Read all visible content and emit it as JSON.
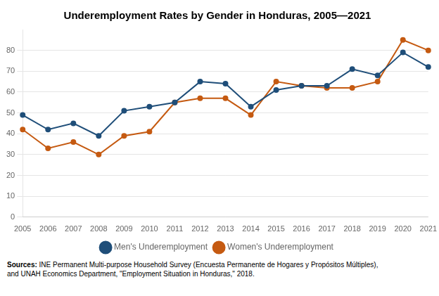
{
  "chart_data": {
    "type": "line",
    "title": "Underemployment Rates by Gender in Honduras, 2005—2021",
    "categories": [
      "2005",
      "2006",
      "2007",
      "2008",
      "2009",
      "2010",
      "2011",
      "2012",
      "2013",
      "2014",
      "2015",
      "2016",
      "2017",
      "2018",
      "2019",
      "2020",
      "2021"
    ],
    "series": [
      {
        "name": "Men's Underemployment",
        "color": "#1f4e79",
        "marker": "circle",
        "values": [
          49,
          42,
          45,
          39,
          51,
          53,
          55,
          65,
          64,
          53,
          61,
          63,
          63,
          71,
          68,
          79,
          72
        ]
      },
      {
        "name": "Women's Underemployment",
        "color": "#c55a11",
        "marker": "circle",
        "values": [
          42,
          33,
          36,
          30,
          39,
          41,
          55,
          57,
          57,
          49,
          65,
          63,
          62,
          62,
          65,
          85,
          80
        ]
      }
    ],
    "ylim": [
      0,
      90
    ],
    "yticks": [
      0,
      10,
      20,
      30,
      40,
      50,
      60,
      70,
      80
    ],
    "grid": "y",
    "legend": "bottom",
    "annotations": [
      "Sources:",
      "INE Permanent Multi-purpose Household Survey (Encuesta Permanente de Hogares y Propósitos Múltiples),\nand UNAH Economics Department, \"Employment Situation in Honduras,\" 2018."
    ]
  }
}
